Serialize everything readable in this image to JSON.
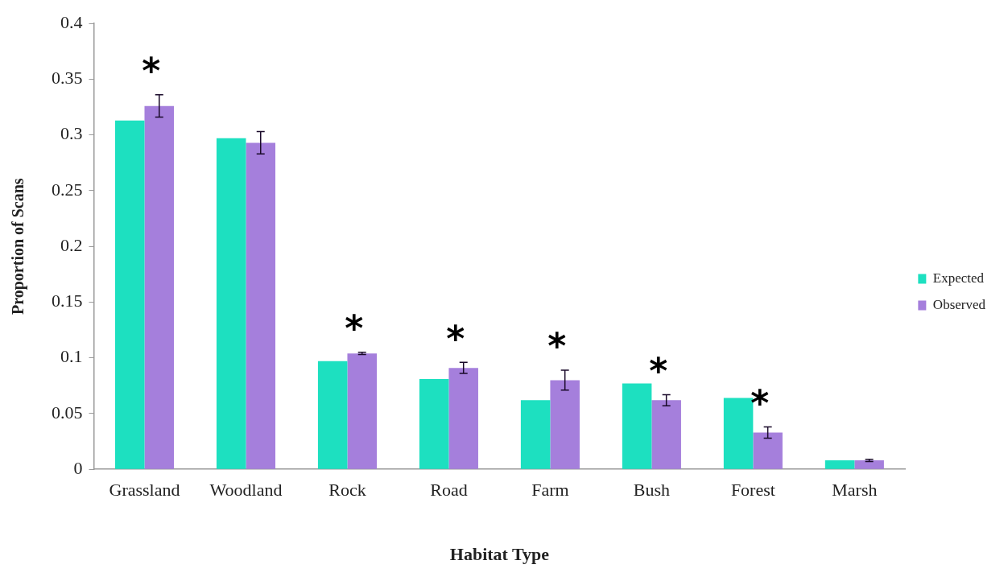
{
  "chart_data": {
    "type": "bar",
    "xlabel": "Habitat Type",
    "ylabel": "Proportion of Scans",
    "categories": [
      "Grassland",
      "Woodland",
      "Rock",
      "Road",
      "Farm",
      "Bush",
      "Forest",
      "Marsh"
    ],
    "series": [
      {
        "name": "Expected",
        "color": "#1de0c0",
        "values": [
          0.313,
          0.297,
          0.097,
          0.081,
          0.062,
          0.077,
          0.064,
          0.008
        ]
      },
      {
        "name": "Observed",
        "color": "#a57fdc",
        "values": [
          0.326,
          0.293,
          0.104,
          0.091,
          0.08,
          0.062,
          0.033,
          0.008
        ],
        "errors": [
          0.01,
          0.01,
          0.001,
          0.005,
          0.009,
          0.005,
          0.005,
          0.001
        ],
        "value_labels": [
          "*",
          null,
          "*",
          "*",
          "*",
          "*",
          "*",
          null
        ]
      }
    ],
    "ylim": [
      0,
      0.4
    ],
    "yticks": [
      0,
      0.05,
      0.1,
      0.15,
      0.2,
      0.25,
      0.3,
      0.35,
      0.4
    ],
    "grid": false,
    "legend": "right"
  }
}
